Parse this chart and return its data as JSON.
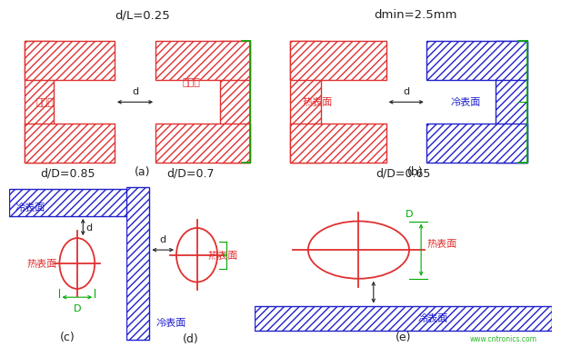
{
  "bg_color": "#ffffff",
  "red": "#e03030",
  "blue": "#2020cc",
  "green": "#00aa00",
  "black": "#222222",
  "panel_a_title": "d/L=0.25",
  "panel_b_title": "dmin=2.5mm",
  "panel_c_title": "d/D=0.85",
  "panel_d_title": "d/D=0.7",
  "panel_e_title": "d/D=0.65",
  "label_a": "(a)",
  "label_b": "(b)",
  "label_c": "(c)",
  "label_d": "(d)",
  "label_e": "(e)",
  "watermark": "www.cntronics.com"
}
